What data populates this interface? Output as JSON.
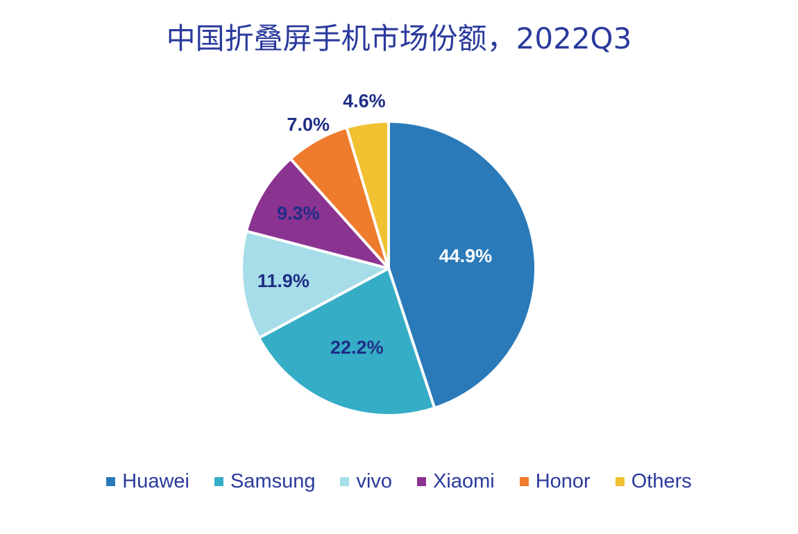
{
  "chart_data": {
    "type": "pie",
    "title": "中国折叠屏手机市场份额，2022Q3",
    "categories": [
      "Huawei",
      "Samsung",
      "vivo",
      "Xiaomi",
      "Honor",
      "Others"
    ],
    "values": [
      44.9,
      22.2,
      11.9,
      9.3,
      7.0,
      4.6
    ],
    "value_labels": [
      "44.9%",
      "22.2%",
      "11.9%",
      "9.3%",
      "7.0%",
      "4.6%"
    ],
    "colors": [
      "#2a7ab9",
      "#36adc6",
      "#a6dde8",
      "#8b3391",
      "#ef7b2c",
      "#f1c132"
    ],
    "label_colors": [
      "#ffffff",
      "#1f2d86",
      "#1f2d86",
      "#1f2d86",
      "#1f2d86",
      "#1f2d86"
    ],
    "legend_position": "bottom",
    "start": "12 o'clock",
    "direction": "clockwise"
  }
}
